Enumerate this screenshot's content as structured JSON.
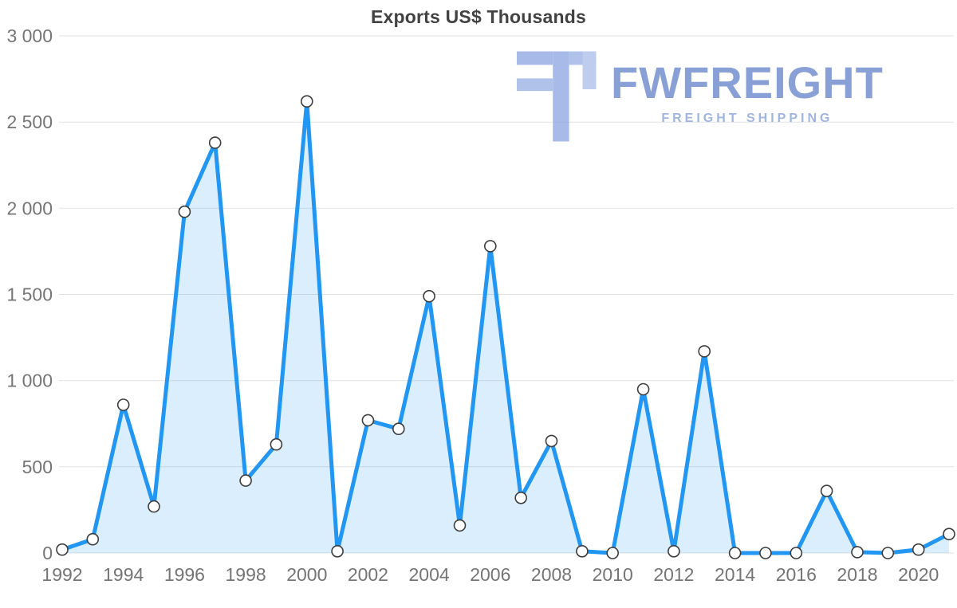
{
  "title": "Exports US$ Thousands",
  "watermark": {
    "brand": "FWFREIGHT",
    "tagline": "FREIGHT SHIPPING",
    "icon": "fwfreight-logo-icon"
  },
  "colors": {
    "line": "#2196f3",
    "area": "rgba(33,150,243,0.16)",
    "grid": "#e2e2e2",
    "axis_text": "#757575",
    "title_text": "#424242",
    "marker_fill": "#ffffff",
    "marker_stroke": "#3d3d3d",
    "logo_primary": "#8ba4e0",
    "logo_secondary": "#a9bce8"
  },
  "chart_data": {
    "type": "area",
    "title": "Exports US$ Thousands",
    "xlabel": "",
    "ylabel": "",
    "legend": "none",
    "grid": "horizontal",
    "ylim": [
      0,
      3000
    ],
    "yticks": [
      0,
      500,
      1000,
      1500,
      2000,
      2500,
      3000
    ],
    "ytick_labels": [
      "0",
      "500",
      "1 000",
      "1 500",
      "2 000",
      "2 500",
      "3 000"
    ],
    "xtick_years": [
      1992,
      1994,
      1996,
      1998,
      2000,
      2002,
      2004,
      2006,
      2008,
      2010,
      2012,
      2014,
      2016,
      2018,
      2020
    ],
    "x": [
      1992,
      1993,
      1994,
      1995,
      1996,
      1997,
      1998,
      1999,
      2000,
      2001,
      2002,
      2003,
      2004,
      2005,
      2006,
      2007,
      2008,
      2009,
      2010,
      2011,
      2012,
      2013,
      2014,
      2015,
      2016,
      2017,
      2018,
      2019,
      2020,
      2021
    ],
    "values": [
      20,
      80,
      860,
      270,
      1980,
      2380,
      420,
      630,
      2620,
      10,
      770,
      720,
      1490,
      160,
      1780,
      320,
      650,
      10,
      0,
      950,
      10,
      1170,
      0,
      0,
      0,
      360,
      5,
      0,
      20,
      110
    ],
    "series_name": "Exports US$ Thousands"
  }
}
